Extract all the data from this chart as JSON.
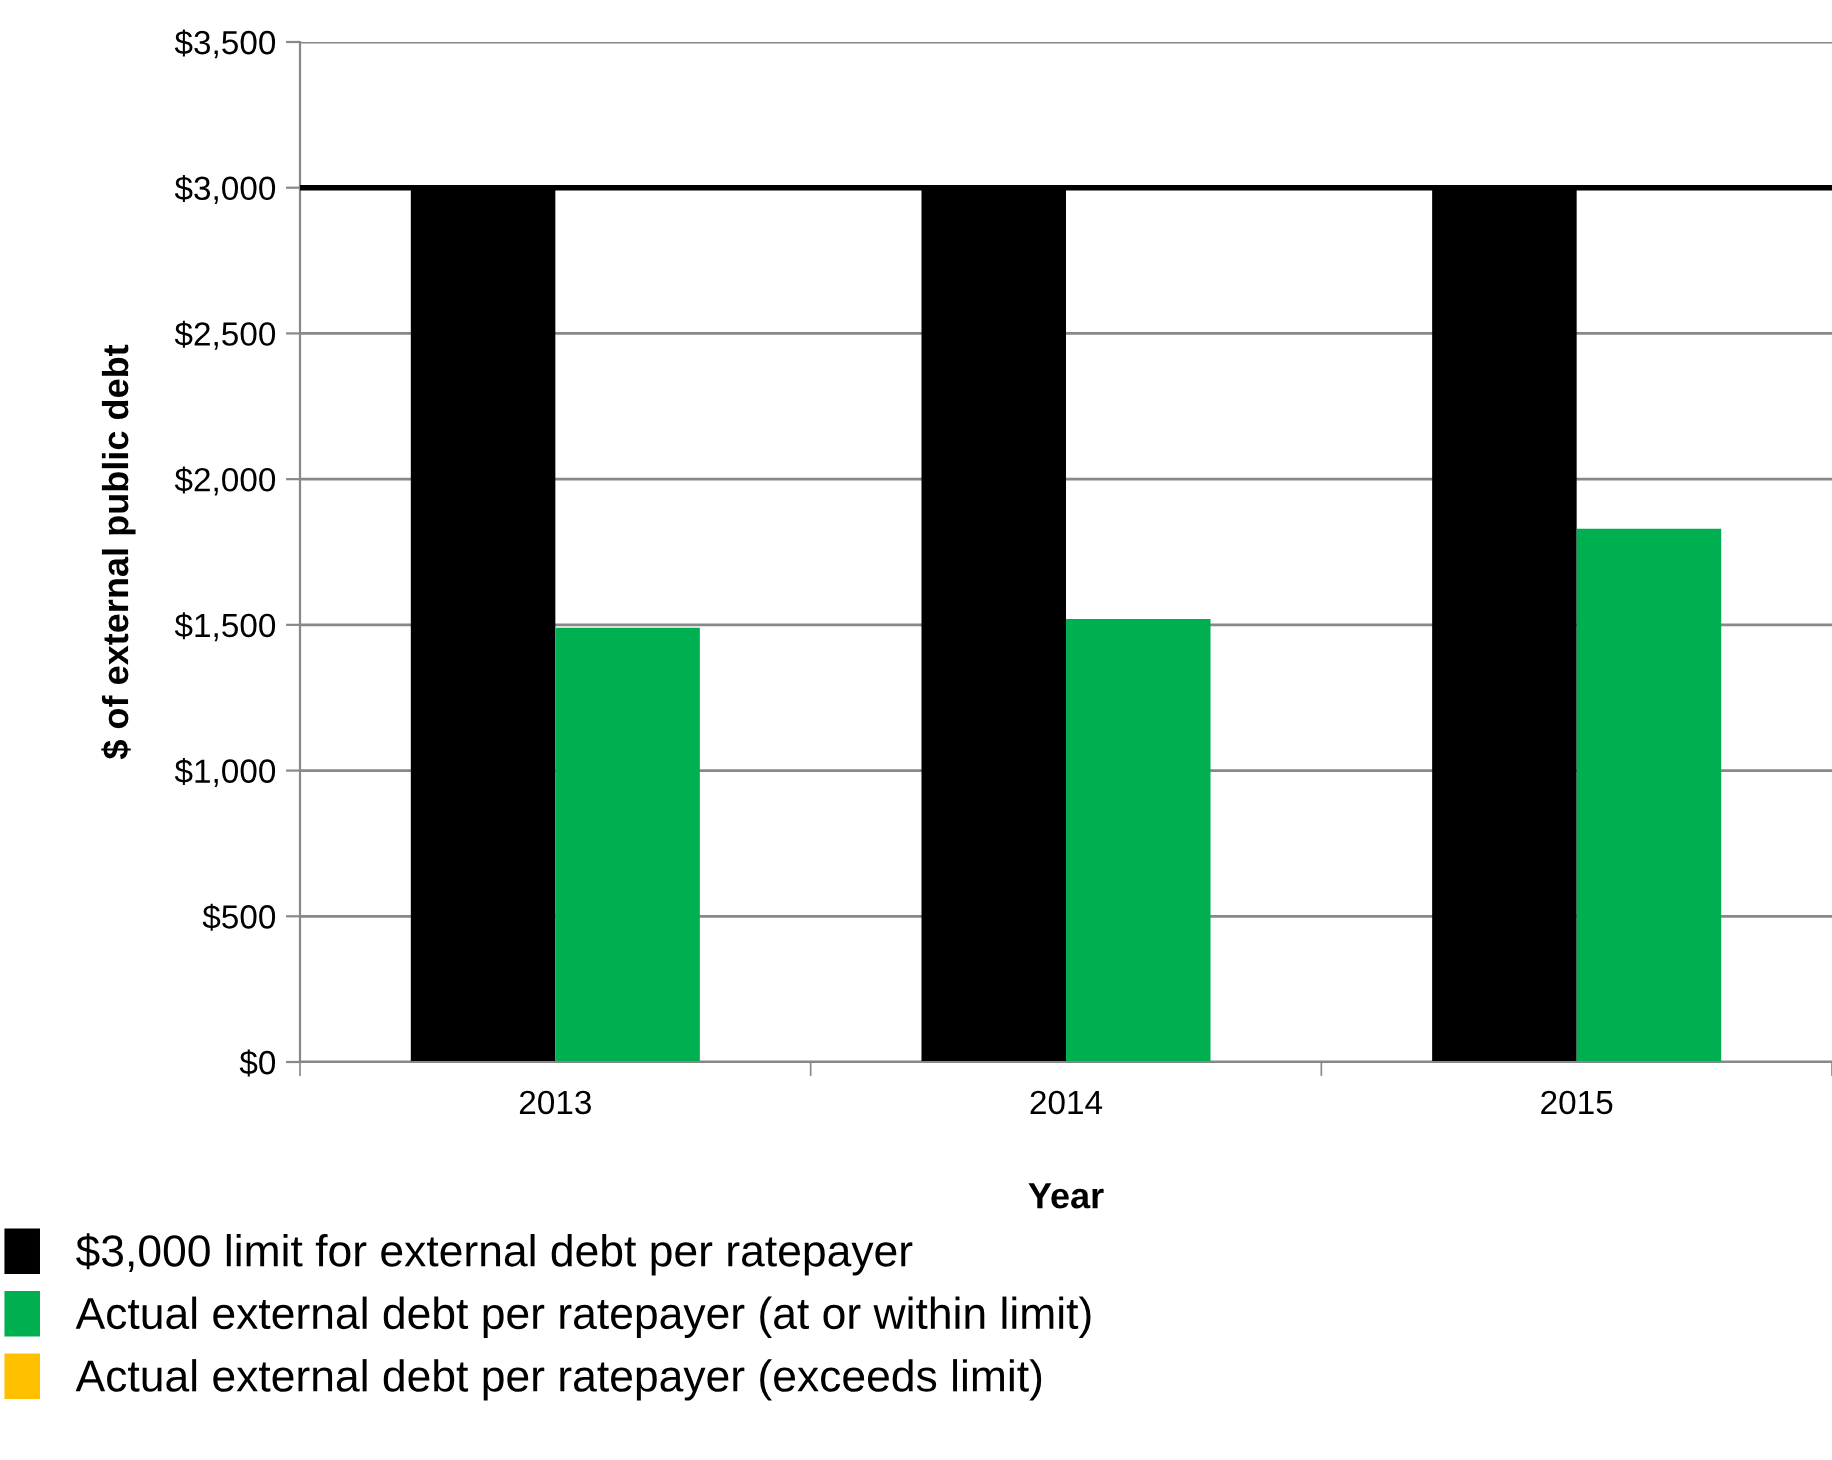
{
  "chart_data": {
    "type": "bar",
    "xlabel": "Year",
    "ylabel": "$ of external public debt",
    "categories": [
      "2013",
      "2014",
      "2015"
    ],
    "series": [
      {
        "name": "$3,000 limit for external debt per ratepayer",
        "color": "#000000",
        "values": [
          3000,
          3000,
          3000
        ]
      },
      {
        "name": "Actual external debt per ratepayer (at or within limit)",
        "color": "#00b050",
        "values": [
          1490,
          1520,
          1830
        ]
      },
      {
        "name": "Actual external debt per ratepayer (exceeds limit)",
        "color": "#ffc000",
        "values": [
          null,
          null,
          null
        ]
      }
    ],
    "ylim": [
      0,
      3500
    ],
    "yticks": [
      {
        "value": 0,
        "label": "$0"
      },
      {
        "value": 500,
        "label": "$500"
      },
      {
        "value": 1000,
        "label": "$1,000"
      },
      {
        "value": 1500,
        "label": "$1,500"
      },
      {
        "value": 2000,
        "label": "$2,000"
      },
      {
        "value": 2500,
        "label": "$2,500"
      },
      {
        "value": 3000,
        "label": "$3,000"
      },
      {
        "value": 3500,
        "label": "$3,500"
      }
    ],
    "ref_lines": [
      {
        "axis": "y",
        "value": 3000,
        "color": "#000000"
      }
    ],
    "grid": "y",
    "legend": "bottom"
  }
}
